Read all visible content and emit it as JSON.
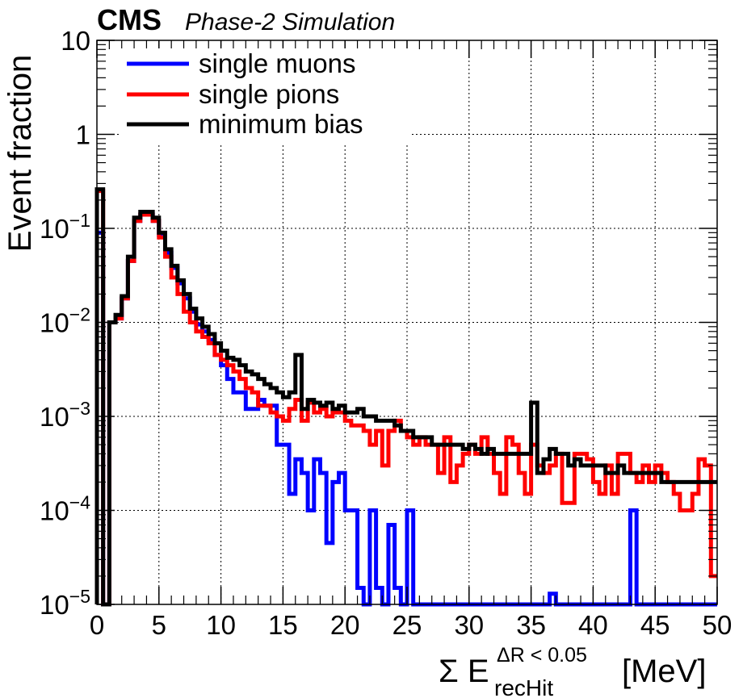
{
  "header": {
    "experiment": "CMS",
    "subtitle": "Phase-2 Simulation"
  },
  "chart_data": {
    "type": "line",
    "ylabel": "Event fraction",
    "xlabel": {
      "prefix": "Σ E",
      "superscript": "ΔR < 0.05",
      "subscript": "recHit",
      "unit": "[MeV]"
    },
    "xlim": [
      0,
      50
    ],
    "ylim": [
      1e-05,
      10
    ],
    "log_y": true,
    "grid": true,
    "legend_position": "top-left",
    "x_ticks": [
      0,
      5,
      10,
      15,
      20,
      25,
      30,
      35,
      40,
      45,
      50
    ],
    "x_tick_labels": [
      "0",
      "5",
      "10",
      "15",
      "20",
      "25",
      "30",
      "35",
      "40",
      "45",
      "50"
    ],
    "y_ticks": [
      {
        "value": 1e-05,
        "base": "10",
        "exp": "−5"
      },
      {
        "value": 0.0001,
        "base": "10",
        "exp": "−4"
      },
      {
        "value": 0.001,
        "base": "10",
        "exp": "−3"
      },
      {
        "value": 0.01,
        "base": "10",
        "exp": "−2"
      },
      {
        "value": 0.1,
        "base": "10",
        "exp": "−1"
      },
      {
        "value": 1,
        "base": "1",
        "exp": ""
      },
      {
        "value": 10,
        "base": "10",
        "exp": ""
      }
    ],
    "bin_width": 0.5,
    "series": [
      {
        "name": "single muons",
        "color": "#0000ff",
        "values": [
          0.09,
          1e-05,
          0.01,
          0.011,
          0.018,
          0.045,
          0.12,
          0.14,
          0.14,
          0.12,
          0.085,
          0.055,
          0.038,
          0.026,
          0.018,
          0.013,
          0.0095,
          0.008,
          0.0065,
          0.0045,
          0.0035,
          0.0025,
          0.0018,
          0.0018,
          0.0012,
          0.0012,
          0.0015,
          0.0013,
          0.0013,
          0.0005,
          0.0005,
          0.00015,
          0.00035,
          0.00025,
          0.0001,
          0.00035,
          0.00025,
          4.5e-05,
          0.0002,
          0.00025,
          0.0001,
          0.0001,
          1.5e-05,
          1e-05,
          0.0001,
          1.5e-05,
          1e-05,
          7e-05,
          1.5e-05,
          1e-05,
          0.0001,
          1e-05,
          1e-05,
          1e-05,
          1e-05,
          1e-05,
          1e-05,
          1e-05,
          1e-05,
          1e-05,
          1e-05,
          1e-05,
          1e-05,
          1e-05,
          1e-05,
          1e-05,
          1e-05,
          1e-05,
          1e-05,
          1e-05,
          1e-05,
          1e-05,
          1e-05,
          1.3e-05,
          1e-05,
          1e-05,
          1e-05,
          1e-05,
          1e-05,
          1e-05,
          1e-05,
          1e-05,
          1e-05,
          1e-05,
          1e-05,
          1e-05,
          0.0001,
          1e-05,
          1e-05,
          1e-05,
          1e-05,
          1e-05,
          1e-05,
          1e-05,
          1e-05,
          1e-05,
          1e-05,
          1e-05,
          1e-05,
          1e-05
        ]
      },
      {
        "name": "single pions",
        "color": "#ff0000",
        "values": [
          0.25,
          1e-05,
          0.01,
          0.011,
          0.018,
          0.045,
          0.12,
          0.14,
          0.14,
          0.12,
          0.08,
          0.05,
          0.03,
          0.02,
          0.013,
          0.01,
          0.008,
          0.007,
          0.006,
          0.0045,
          0.004,
          0.0035,
          0.003,
          0.0025,
          0.002,
          0.0018,
          0.0013,
          0.0013,
          0.0011,
          0.001,
          0.0009,
          0.0012,
          0.0015,
          0.0009,
          0.0014,
          0.0011,
          0.0012,
          0.001,
          0.0011,
          0.0011,
          0.0009,
          0.0008,
          0.0008,
          0.0007,
          0.0005,
          0.0007,
          0.0003,
          0.0007,
          0.0009,
          0.0007,
          0.0006,
          0.0005,
          0.0006,
          0.0005,
          0.0005,
          0.00025,
          0.0006,
          0.0002,
          0.0003,
          0.0004,
          0.0005,
          0.0004,
          0.0006,
          0.0004,
          0.00025,
          0.00015,
          0.0006,
          0.0005,
          0.00025,
          0.00015,
          0.0005,
          0.0003,
          0.00025,
          0.0003,
          0.0004,
          0.00012,
          0.00012,
          0.0004,
          0.0004,
          0.00035,
          0.0002,
          0.00015,
          0.0003,
          0.00015,
          0.0004,
          0.0004,
          0.00025,
          0.0002,
          0.0003,
          0.0002,
          0.0003,
          0.00025,
          0.0002,
          0.00015,
          0.0001,
          0.0001,
          0.00015,
          0.00035,
          0.0003,
          2e-05
        ]
      },
      {
        "name": "minimum bias",
        "color": "#000000",
        "values": [
          0.26,
          1e-05,
          0.01,
          0.012,
          0.019,
          0.05,
          0.13,
          0.15,
          0.15,
          0.13,
          0.09,
          0.06,
          0.04,
          0.028,
          0.02,
          0.014,
          0.011,
          0.009,
          0.0075,
          0.006,
          0.005,
          0.0042,
          0.004,
          0.0035,
          0.003,
          0.0028,
          0.0025,
          0.0022,
          0.002,
          0.0018,
          0.0016,
          0.0018,
          0.0045,
          0.0012,
          0.0015,
          0.0014,
          0.0013,
          0.0014,
          0.0012,
          0.0013,
          0.0011,
          0.0011,
          0.0012,
          0.001,
          0.001,
          0.0009,
          0.0009,
          0.0009,
          0.0008,
          0.0007,
          0.0007,
          0.0006,
          0.0006,
          0.0006,
          0.0005,
          0.0005,
          0.0005,
          0.0005,
          0.0005,
          0.00045,
          0.0005,
          0.00045,
          0.0004,
          0.00045,
          0.0004,
          0.0004,
          0.0004,
          0.0004,
          0.0004,
          0.0004,
          0.0014,
          0.00025,
          0.00035,
          0.00045,
          0.0004,
          0.0004,
          0.0003,
          0.00035,
          0.0003,
          0.0003,
          0.0003,
          0.0003,
          0.00025,
          0.00025,
          0.0003,
          0.00025,
          0.00025,
          0.00025,
          0.00025,
          0.00025,
          0.00025,
          0.0002,
          0.0002,
          0.0002,
          0.0002,
          0.0002,
          0.0002,
          0.0002,
          0.0002,
          0.0002
        ]
      }
    ]
  }
}
